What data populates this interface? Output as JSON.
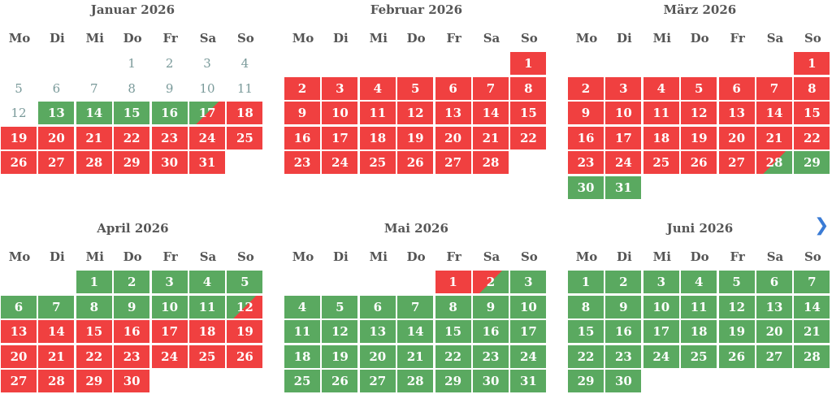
{
  "weekdays": [
    "Mo",
    "Di",
    "Mi",
    "Do",
    "Fr",
    "Sa",
    "So"
  ],
  "months": [
    {
      "title": "Januar 2026",
      "weeks": [
        [
          null,
          null,
          null,
          {
            "d": 1,
            "s": "past"
          },
          {
            "d": 2,
            "s": "past"
          },
          {
            "d": 3,
            "s": "past"
          },
          {
            "d": 4,
            "s": "past"
          }
        ],
        [
          {
            "d": 5,
            "s": "past"
          },
          {
            "d": 6,
            "s": "past"
          },
          {
            "d": 7,
            "s": "past"
          },
          {
            "d": 8,
            "s": "past"
          },
          {
            "d": 9,
            "s": "past"
          },
          {
            "d": 10,
            "s": "past"
          },
          {
            "d": 11,
            "s": "past"
          }
        ],
        [
          {
            "d": 12,
            "s": "past"
          },
          {
            "d": 13,
            "s": "free"
          },
          {
            "d": 14,
            "s": "free"
          },
          {
            "d": 15,
            "s": "free"
          },
          {
            "d": 16,
            "s": "free"
          },
          {
            "d": 17,
            "s": "free-booked"
          },
          {
            "d": 18,
            "s": "booked"
          }
        ],
        [
          {
            "d": 19,
            "s": "booked"
          },
          {
            "d": 20,
            "s": "booked"
          },
          {
            "d": 21,
            "s": "booked"
          },
          {
            "d": 22,
            "s": "booked"
          },
          {
            "d": 23,
            "s": "booked"
          },
          {
            "d": 24,
            "s": "booked"
          },
          {
            "d": 25,
            "s": "booked"
          }
        ],
        [
          {
            "d": 26,
            "s": "booked"
          },
          {
            "d": 27,
            "s": "booked"
          },
          {
            "d": 28,
            "s": "booked"
          },
          {
            "d": 29,
            "s": "booked"
          },
          {
            "d": 30,
            "s": "booked"
          },
          {
            "d": 31,
            "s": "booked"
          },
          null
        ]
      ]
    },
    {
      "title": "Februar 2026",
      "weeks": [
        [
          null,
          null,
          null,
          null,
          null,
          null,
          {
            "d": 1,
            "s": "booked"
          }
        ],
        [
          {
            "d": 2,
            "s": "booked"
          },
          {
            "d": 3,
            "s": "booked"
          },
          {
            "d": 4,
            "s": "booked"
          },
          {
            "d": 5,
            "s": "booked"
          },
          {
            "d": 6,
            "s": "booked"
          },
          {
            "d": 7,
            "s": "booked"
          },
          {
            "d": 8,
            "s": "booked"
          }
        ],
        [
          {
            "d": 9,
            "s": "booked"
          },
          {
            "d": 10,
            "s": "booked"
          },
          {
            "d": 11,
            "s": "booked"
          },
          {
            "d": 12,
            "s": "booked"
          },
          {
            "d": 13,
            "s": "booked"
          },
          {
            "d": 14,
            "s": "booked"
          },
          {
            "d": 15,
            "s": "booked"
          }
        ],
        [
          {
            "d": 16,
            "s": "booked"
          },
          {
            "d": 17,
            "s": "booked"
          },
          {
            "d": 18,
            "s": "booked"
          },
          {
            "d": 19,
            "s": "booked"
          },
          {
            "d": 20,
            "s": "booked"
          },
          {
            "d": 21,
            "s": "booked"
          },
          {
            "d": 22,
            "s": "booked"
          }
        ],
        [
          {
            "d": 23,
            "s": "booked"
          },
          {
            "d": 24,
            "s": "booked"
          },
          {
            "d": 25,
            "s": "booked"
          },
          {
            "d": 26,
            "s": "booked"
          },
          {
            "d": 27,
            "s": "booked"
          },
          {
            "d": 28,
            "s": "booked"
          },
          null
        ]
      ]
    },
    {
      "title": "März 2026",
      "weeks": [
        [
          null,
          null,
          null,
          null,
          null,
          null,
          {
            "d": 1,
            "s": "booked"
          }
        ],
        [
          {
            "d": 2,
            "s": "booked"
          },
          {
            "d": 3,
            "s": "booked"
          },
          {
            "d": 4,
            "s": "booked"
          },
          {
            "d": 5,
            "s": "booked"
          },
          {
            "d": 6,
            "s": "booked"
          },
          {
            "d": 7,
            "s": "booked"
          },
          {
            "d": 8,
            "s": "booked"
          }
        ],
        [
          {
            "d": 9,
            "s": "booked"
          },
          {
            "d": 10,
            "s": "booked"
          },
          {
            "d": 11,
            "s": "booked"
          },
          {
            "d": 12,
            "s": "booked"
          },
          {
            "d": 13,
            "s": "booked"
          },
          {
            "d": 14,
            "s": "booked"
          },
          {
            "d": 15,
            "s": "booked"
          }
        ],
        [
          {
            "d": 16,
            "s": "booked"
          },
          {
            "d": 17,
            "s": "booked"
          },
          {
            "d": 18,
            "s": "booked"
          },
          {
            "d": 19,
            "s": "booked"
          },
          {
            "d": 20,
            "s": "booked"
          },
          {
            "d": 21,
            "s": "booked"
          },
          {
            "d": 22,
            "s": "booked"
          }
        ],
        [
          {
            "d": 23,
            "s": "booked"
          },
          {
            "d": 24,
            "s": "booked"
          },
          {
            "d": 25,
            "s": "booked"
          },
          {
            "d": 26,
            "s": "booked"
          },
          {
            "d": 27,
            "s": "booked"
          },
          {
            "d": 28,
            "s": "booked-free"
          },
          {
            "d": 29,
            "s": "free"
          }
        ],
        [
          {
            "d": 30,
            "s": "free"
          },
          {
            "d": 31,
            "s": "free"
          },
          null,
          null,
          null,
          null,
          null
        ]
      ]
    },
    {
      "title": "April 2026",
      "weeks": [
        [
          null,
          null,
          {
            "d": 1,
            "s": "free"
          },
          {
            "d": 2,
            "s": "free"
          },
          {
            "d": 3,
            "s": "free"
          },
          {
            "d": 4,
            "s": "free"
          },
          {
            "d": 5,
            "s": "free"
          }
        ],
        [
          {
            "d": 6,
            "s": "free"
          },
          {
            "d": 7,
            "s": "free"
          },
          {
            "d": 8,
            "s": "free"
          },
          {
            "d": 9,
            "s": "free"
          },
          {
            "d": 10,
            "s": "free"
          },
          {
            "d": 11,
            "s": "free"
          },
          {
            "d": 12,
            "s": "free-booked"
          }
        ],
        [
          {
            "d": 13,
            "s": "booked"
          },
          {
            "d": 14,
            "s": "booked"
          },
          {
            "d": 15,
            "s": "booked"
          },
          {
            "d": 16,
            "s": "booked"
          },
          {
            "d": 17,
            "s": "booked"
          },
          {
            "d": 18,
            "s": "booked"
          },
          {
            "d": 19,
            "s": "booked"
          }
        ],
        [
          {
            "d": 20,
            "s": "booked"
          },
          {
            "d": 21,
            "s": "booked"
          },
          {
            "d": 22,
            "s": "booked"
          },
          {
            "d": 23,
            "s": "booked"
          },
          {
            "d": 24,
            "s": "booked"
          },
          {
            "d": 25,
            "s": "booked"
          },
          {
            "d": 26,
            "s": "booked"
          }
        ],
        [
          {
            "d": 27,
            "s": "booked"
          },
          {
            "d": 28,
            "s": "booked"
          },
          {
            "d": 29,
            "s": "booked"
          },
          {
            "d": 30,
            "s": "booked"
          },
          null,
          null,
          null
        ]
      ]
    },
    {
      "title": "Mai 2026",
      "weeks": [
        [
          null,
          null,
          null,
          null,
          {
            "d": 1,
            "s": "booked"
          },
          {
            "d": 2,
            "s": "booked-free"
          },
          {
            "d": 3,
            "s": "free"
          }
        ],
        [
          {
            "d": 4,
            "s": "free"
          },
          {
            "d": 5,
            "s": "free"
          },
          {
            "d": 6,
            "s": "free"
          },
          {
            "d": 7,
            "s": "free"
          },
          {
            "d": 8,
            "s": "free"
          },
          {
            "d": 9,
            "s": "free"
          },
          {
            "d": 10,
            "s": "free"
          }
        ],
        [
          {
            "d": 11,
            "s": "free"
          },
          {
            "d": 12,
            "s": "free"
          },
          {
            "d": 13,
            "s": "free"
          },
          {
            "d": 14,
            "s": "free"
          },
          {
            "d": 15,
            "s": "free"
          },
          {
            "d": 16,
            "s": "free"
          },
          {
            "d": 17,
            "s": "free"
          }
        ],
        [
          {
            "d": 18,
            "s": "free"
          },
          {
            "d": 19,
            "s": "free"
          },
          {
            "d": 20,
            "s": "free"
          },
          {
            "d": 21,
            "s": "free"
          },
          {
            "d": 22,
            "s": "free"
          },
          {
            "d": 23,
            "s": "free"
          },
          {
            "d": 24,
            "s": "free"
          }
        ],
        [
          {
            "d": 25,
            "s": "free"
          },
          {
            "d": 26,
            "s": "free"
          },
          {
            "d": 27,
            "s": "free"
          },
          {
            "d": 28,
            "s": "free"
          },
          {
            "d": 29,
            "s": "free"
          },
          {
            "d": 30,
            "s": "free"
          },
          {
            "d": 31,
            "s": "free"
          }
        ]
      ]
    },
    {
      "title": "Juni 2026",
      "weeks": [
        [
          {
            "d": 1,
            "s": "free"
          },
          {
            "d": 2,
            "s": "free"
          },
          {
            "d": 3,
            "s": "free"
          },
          {
            "d": 4,
            "s": "free"
          },
          {
            "d": 5,
            "s": "free"
          },
          {
            "d": 6,
            "s": "free"
          },
          {
            "d": 7,
            "s": "free"
          }
        ],
        [
          {
            "d": 8,
            "s": "free"
          },
          {
            "d": 9,
            "s": "free"
          },
          {
            "d": 10,
            "s": "free"
          },
          {
            "d": 11,
            "s": "free"
          },
          {
            "d": 12,
            "s": "free"
          },
          {
            "d": 13,
            "s": "free"
          },
          {
            "d": 14,
            "s": "free"
          }
        ],
        [
          {
            "d": 15,
            "s": "free"
          },
          {
            "d": 16,
            "s": "free"
          },
          {
            "d": 17,
            "s": "free"
          },
          {
            "d": 18,
            "s": "free"
          },
          {
            "d": 19,
            "s": "free"
          },
          {
            "d": 20,
            "s": "free"
          },
          {
            "d": 21,
            "s": "free"
          }
        ],
        [
          {
            "d": 22,
            "s": "free"
          },
          {
            "d": 23,
            "s": "free"
          },
          {
            "d": 24,
            "s": "free"
          },
          {
            "d": 25,
            "s": "free"
          },
          {
            "d": 26,
            "s": "free"
          },
          {
            "d": 27,
            "s": "free"
          },
          {
            "d": 28,
            "s": "free"
          }
        ],
        [
          {
            "d": 29,
            "s": "free"
          },
          {
            "d": 30,
            "s": "free"
          },
          null,
          null,
          null,
          null,
          null
        ]
      ]
    }
  ]
}
